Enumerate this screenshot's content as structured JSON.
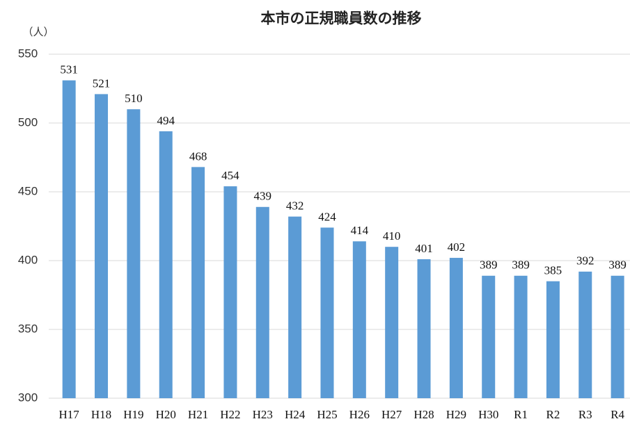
{
  "chart_data": {
    "type": "bar",
    "title": "本市の正規職員数の推移",
    "y_unit": "（人）",
    "categories": [
      "H17",
      "H18",
      "H19",
      "H20",
      "H21",
      "H22",
      "H23",
      "H24",
      "H25",
      "H26",
      "H27",
      "H28",
      "H29",
      "H30",
      "R1",
      "R2",
      "R3",
      "R4"
    ],
    "values": [
      531,
      521,
      510,
      494,
      468,
      454,
      439,
      432,
      424,
      414,
      410,
      401,
      402,
      389,
      389,
      385,
      392,
      389
    ],
    "color": "#5b9bd5",
    "ylim": [
      300,
      550
    ],
    "yticks": [
      300,
      350,
      400,
      450,
      500,
      550
    ],
    "grid": true
  }
}
